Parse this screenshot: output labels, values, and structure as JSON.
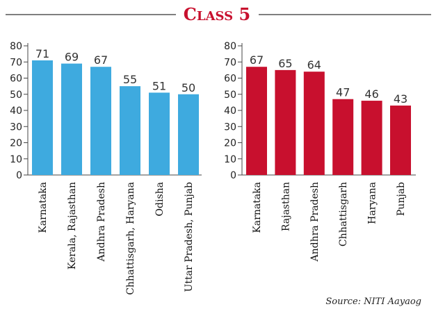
{
  "title": {
    "prefix": "C",
    "smallcaps": "LASS",
    "number": " 5"
  },
  "source": "Source: NITI Aayaog",
  "colors": {
    "title": "#c8102e",
    "left_bars": "#3eaadf",
    "right_bars": "#c8102e",
    "rule": "#333333"
  },
  "chart_data": [
    {
      "type": "bar",
      "categories": [
        "Karnataka",
        "Kerala, Rajasthan",
        "Andhra Pradesh",
        "Chhattisgarh, Haryana",
        "Odisha",
        "Uttar Pradesh, Punjab"
      ],
      "values": [
        71,
        69,
        67,
        55,
        51,
        50
      ],
      "ylim": [
        0,
        80
      ],
      "yticks": [
        0,
        10,
        20,
        30,
        40,
        50,
        60,
        70,
        80
      ],
      "grid": false,
      "color": "#3eaadf"
    },
    {
      "type": "bar",
      "categories": [
        "Karnataka",
        "Rajasthan",
        "Andhra Pradesh",
        "Chhattisgarh",
        "Haryana",
        "Punjab"
      ],
      "values": [
        67,
        65,
        64,
        47,
        46,
        43
      ],
      "ylim": [
        0,
        80
      ],
      "yticks": [
        0,
        10,
        20,
        30,
        40,
        50,
        60,
        70,
        80
      ],
      "grid": false,
      "color": "#c8102e"
    }
  ]
}
